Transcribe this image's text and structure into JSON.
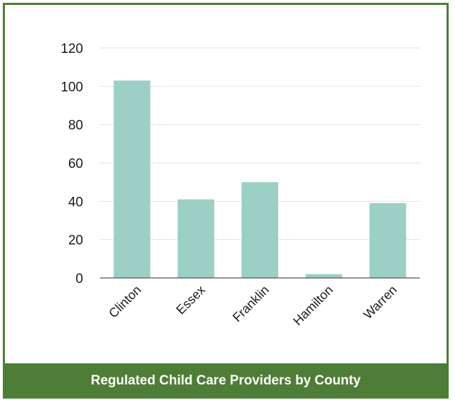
{
  "colors": {
    "bar": "#9ccfc6",
    "frame": "#4e7d38",
    "grid": "#e3e3e3",
    "axis": "#555555"
  },
  "footer": {
    "title": "Regulated Child Care Providers by County"
  },
  "chart_data": {
    "type": "bar",
    "title": "Regulated Child Care Providers by County",
    "xlabel": "",
    "ylabel": "",
    "categories": [
      "Clinton",
      "Essex",
      "Franklin",
      "Hamilton",
      "Warren"
    ],
    "values": [
      103,
      41,
      50,
      2,
      39
    ],
    "ylim": [
      0,
      120
    ],
    "yticks": [
      0,
      20,
      40,
      60,
      80,
      100,
      120
    ],
    "grid": true,
    "legend": "none"
  }
}
